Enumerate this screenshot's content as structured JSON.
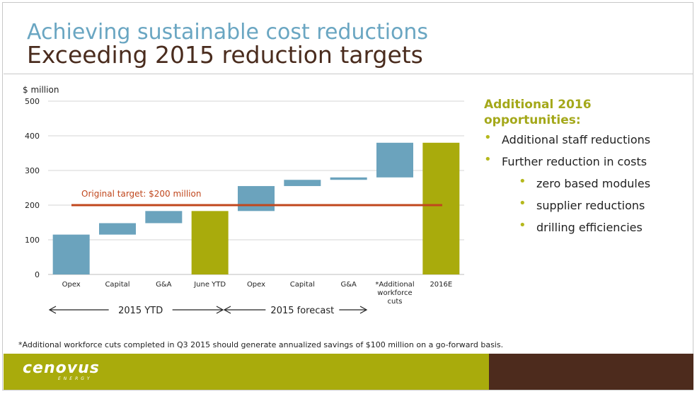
{
  "header": {
    "title": "Achieving sustainable cost reductions",
    "subtitle": "Exceeding 2015 reduction targets"
  },
  "chart_data": {
    "type": "bar",
    "subtype": "waterfall",
    "ylabel": "$ million",
    "ylim": [
      0,
      500
    ],
    "yticks": [
      0,
      100,
      200,
      300,
      400,
      500
    ],
    "grid": true,
    "categories": [
      "Opex",
      "Capital",
      "G&A",
      "June YTD",
      "Opex",
      "Capital",
      "G&A",
      "*Additional workforce cuts",
      "2016E"
    ],
    "bars": [
      {
        "category": "Opex",
        "base": 0,
        "top": 115,
        "kind": "step"
      },
      {
        "category": "Capital",
        "base": 115,
        "top": 148,
        "kind": "step"
      },
      {
        "category": "G&A",
        "base": 148,
        "top": 183,
        "kind": "step"
      },
      {
        "category": "June YTD",
        "base": 0,
        "top": 183,
        "kind": "total"
      },
      {
        "category": "Opex",
        "base": 183,
        "top": 255,
        "kind": "step"
      },
      {
        "category": "Capital",
        "base": 255,
        "top": 273,
        "kind": "step"
      },
      {
        "category": "G&A",
        "base": 273,
        "top": 280,
        "kind": "step"
      },
      {
        "category": "*Additional workforce cuts",
        "base": 280,
        "top": 380,
        "kind": "step"
      },
      {
        "category": "2016E",
        "base": 0,
        "top": 380,
        "kind": "total"
      }
    ],
    "target": {
      "value": 200,
      "label": "Original target: $200 million"
    },
    "groups": [
      {
        "label": "2015 YTD",
        "from": 0,
        "to": 3
      },
      {
        "label": "2015 forecast",
        "from": 4,
        "to": 6
      }
    ],
    "colors": {
      "step": "#6ba3bd",
      "total": "#a9ab0c",
      "target": "#c0471d",
      "grid": "#d4d4d4"
    }
  },
  "side": {
    "title": "Additional 2016 opportunities:",
    "items": [
      {
        "text": "Additional staff reductions",
        "level": 1
      },
      {
        "text": "Further reduction in costs",
        "level": 1
      },
      {
        "text": "zero based modules",
        "level": 2
      },
      {
        "text": "supplier reductions",
        "level": 2
      },
      {
        "text": "drilling efficiencies",
        "level": 2
      }
    ]
  },
  "footnote": "*Additional workforce cuts completed in Q3 2015 should generate annualized savings of $100 million on a go-forward basis.",
  "footer": {
    "logo": "cenovus",
    "logo_sub": "ENERGY"
  }
}
